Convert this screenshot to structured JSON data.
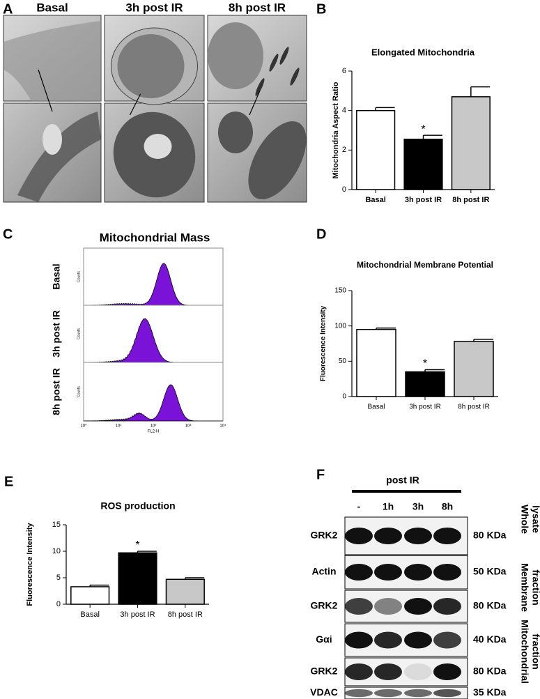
{
  "figure": {
    "A": {
      "label": "A",
      "headers": [
        "Basal",
        "3h post IR",
        "8h post IR"
      ]
    },
    "C": {
      "label": "C",
      "title": "Mitochondrial Mass",
      "rows": [
        "Basal",
        "3h post IR",
        "8h post IR"
      ],
      "xticks": [
        "10⁰",
        "10¹",
        "10²",
        "10³",
        "10⁴"
      ],
      "xlabel": "FL2-H",
      "ylabel": "Counts"
    },
    "F": {
      "label": "F",
      "header": "post IR",
      "lanes": [
        "-",
        "1h",
        "3h",
        "8h"
      ],
      "rows": [
        {
          "protein": "GRK2",
          "size": "80 KDa"
        },
        {
          "protein": "Actin",
          "size": "50 KDa"
        },
        {
          "protein": "GRK2",
          "size": "80 KDa"
        },
        {
          "protein": "Gαi",
          "size": "40 KDa"
        },
        {
          "protein": "GRK2",
          "size": "80 KDa"
        },
        {
          "protein": "VDAC",
          "size": "35 KDa"
        }
      ],
      "fractions": [
        [
          "Whole",
          "lysate"
        ],
        [
          "Membrane",
          "fraction"
        ],
        [
          "Mitochondrial",
          "fraction"
        ]
      ]
    }
  },
  "chart_data": [
    {
      "type": "bar",
      "panel": "B",
      "title": "Elongated Mitochondria",
      "ylabel": "Mitochondria Aspect Ratio",
      "categories": [
        "Basal",
        "3h post IR",
        "8h post IR"
      ],
      "values": [
        4.0,
        2.55,
        4.7
      ],
      "errors": [
        0.15,
        0.2,
        0.5
      ],
      "colors": [
        "#ffffff",
        "#000000",
        "#c8c8c8"
      ],
      "significance": [
        null,
        "*",
        null
      ],
      "ylim": [
        0,
        6
      ],
      "yticks": [
        0,
        2,
        4,
        6
      ]
    },
    {
      "type": "bar",
      "panel": "D",
      "title": "Mitochondrial Membrane Potential",
      "ylabel": "Fluorescence Intensity",
      "categories": [
        "Basal",
        "3h post IR",
        "8h post IR"
      ],
      "values": [
        95,
        35,
        78
      ],
      "errors": [
        2,
        3,
        3
      ],
      "colors": [
        "#ffffff",
        "#000000",
        "#c8c8c8"
      ],
      "significance": [
        null,
        "*",
        null
      ],
      "ylim": [
        0,
        150
      ],
      "yticks": [
        0,
        50,
        100,
        150
      ]
    },
    {
      "type": "bar",
      "panel": "E",
      "title": "ROS production",
      "ylabel": "Fluorescence Intensity",
      "categories": [
        "Basal",
        "3h post IR",
        "8h post IR"
      ],
      "values": [
        3.3,
        9.7,
        4.7
      ],
      "errors": [
        0.3,
        0.3,
        0.3
      ],
      "colors": [
        "#ffffff",
        "#000000",
        "#c8c8c8"
      ],
      "significance": [
        null,
        "*",
        null
      ],
      "ylim": [
        0,
        15
      ],
      "yticks": [
        0,
        5,
        10,
        15
      ]
    }
  ]
}
